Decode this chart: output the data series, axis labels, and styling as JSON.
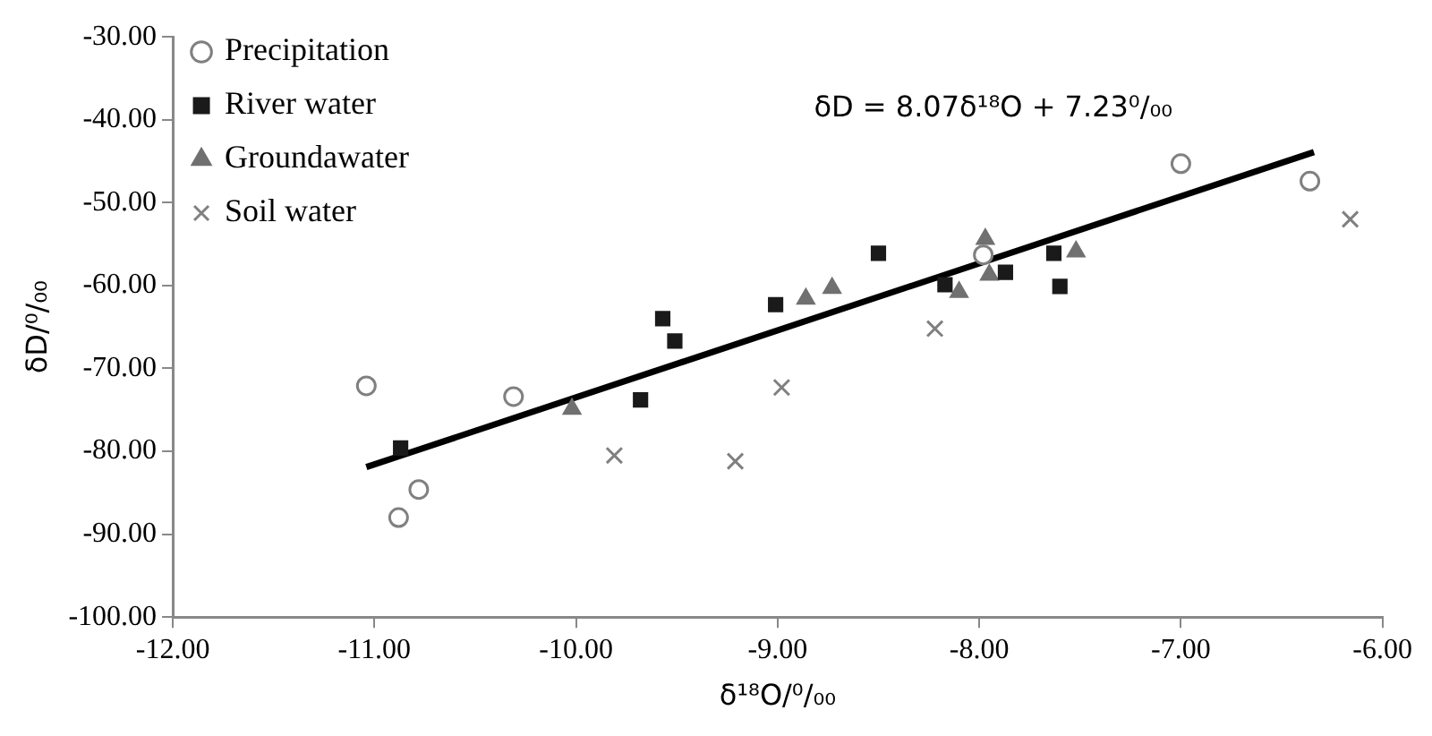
{
  "chart_data": {
    "type": "scatter",
    "xlabel": "δ¹⁸O/⁰/₀₀",
    "ylabel": "δD/⁰/₀₀",
    "annotations": [
      "δD = 8.07δ¹⁸O + 7.23⁰/₀₀"
    ],
    "xlim": [
      -12,
      -6
    ],
    "ylim": [
      -100,
      -30
    ],
    "xticks": [
      {
        "value": -12,
        "label": "-12.00"
      },
      {
        "value": -11,
        "label": "-11.00"
      },
      {
        "value": -10,
        "label": "-10.00"
      },
      {
        "value": -9,
        "label": "-9.00"
      },
      {
        "value": -8,
        "label": "-8.00"
      },
      {
        "value": -7,
        "label": "-7.00"
      },
      {
        "value": -6,
        "label": "-6.00"
      }
    ],
    "yticks": [
      {
        "value": -100,
        "label": "-100.00"
      },
      {
        "value": -90,
        "label": "-90.00"
      },
      {
        "value": -80,
        "label": "-80.00"
      },
      {
        "value": -70,
        "label": "-70.00"
      },
      {
        "value": -60,
        "label": "-60.00"
      },
      {
        "value": -50,
        "label": "-50.00"
      },
      {
        "value": -40,
        "label": "-40.00"
      },
      {
        "value": -30,
        "label": "-30.00"
      }
    ],
    "grid": false,
    "legend": "top left",
    "series": [
      {
        "name": "Precipitation",
        "color": "#808080",
        "marker": "circle",
        "x": [
          -11.04,
          -10.31,
          -10.88,
          -10.78,
          -7.98,
          -7.0,
          -6.36
        ],
        "values": [
          -72.1,
          -73.4,
          -88.0,
          -84.6,
          -56.3,
          -45.3,
          -47.4
        ]
      },
      {
        "name": "River water",
        "color": "#1a1a1a",
        "marker": "square",
        "x": [
          -10.87,
          -9.57,
          -9.51,
          -9.68,
          -9.01,
          -8.5,
          -8.17,
          -7.87,
          -7.63,
          -7.6
        ],
        "values": [
          -79.6,
          -64.0,
          -66.7,
          -73.8,
          -62.3,
          -56.1,
          -59.9,
          -58.4,
          -56.1,
          -60.1
        ]
      },
      {
        "name": "Groundawater",
        "color": "#707070",
        "marker": "triangle",
        "x": [
          -10.02,
          -8.86,
          -8.73,
          -8.1,
          -7.97,
          -7.95,
          -7.52
        ],
        "values": [
          -74.9,
          -61.6,
          -60.3,
          -60.8,
          -54.4,
          -58.7,
          -55.9
        ]
      },
      {
        "name": "Soil water",
        "color": "#808080",
        "marker": "cross",
        "x": [
          -9.81,
          -9.21,
          -8.98,
          -8.22,
          -6.16
        ],
        "values": [
          -80.5,
          -81.2,
          -72.3,
          -65.2,
          -52.0
        ]
      },
      {
        "type": "line",
        "color": "#000000",
        "marker": "none",
        "line_style": "solid",
        "x": [
          -11.04,
          -6.34
        ],
        "values": [
          -81.9,
          -43.9
        ]
      }
    ]
  }
}
